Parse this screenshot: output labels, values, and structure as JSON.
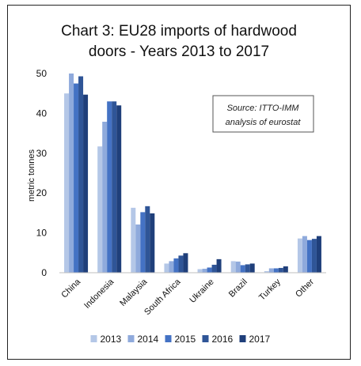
{
  "chart_data": {
    "type": "bar",
    "title_lines": [
      "Chart 3: EU28 imports of hardwood",
      "doors - Years 2013 to 2017"
    ],
    "xlabel": "",
    "ylabel": "metric tonnes",
    "ylim": [
      0,
      50
    ],
    "yticks": [
      "0",
      "10",
      "20",
      "30",
      "40",
      "50"
    ],
    "grid": false,
    "legend_position": "bottom",
    "annotation_lines": [
      "Source: ITTO-IMM",
      "analysis of eurostat"
    ],
    "categories": [
      "China",
      "Indonesia",
      "Malaysia",
      "South Africa",
      "Ukraine",
      "Brazil",
      "Turkey",
      "Other"
    ],
    "series": [
      {
        "name": "2013",
        "color": "#b4c7e7",
        "values": [
          45.0,
          31.7,
          16.3,
          2.3,
          0.9,
          2.9,
          0.4,
          8.6
        ]
      },
      {
        "name": "2014",
        "color": "#8faadc",
        "values": [
          50.0,
          37.9,
          12.1,
          2.9,
          1.0,
          2.8,
          1.1,
          9.2
        ]
      },
      {
        "name": "2015",
        "color": "#4472c4",
        "values": [
          47.5,
          43.0,
          15.2,
          3.6,
          1.3,
          1.9,
          1.1,
          8.2
        ]
      },
      {
        "name": "2016",
        "color": "#2f5597",
        "values": [
          49.3,
          43.0,
          16.7,
          4.3,
          2.0,
          2.1,
          1.2,
          8.5
        ]
      },
      {
        "name": "2017",
        "color": "#1f3f7a",
        "values": [
          44.7,
          42.0,
          14.9,
          4.9,
          3.4,
          2.3,
          1.6,
          9.2
        ]
      }
    ]
  }
}
